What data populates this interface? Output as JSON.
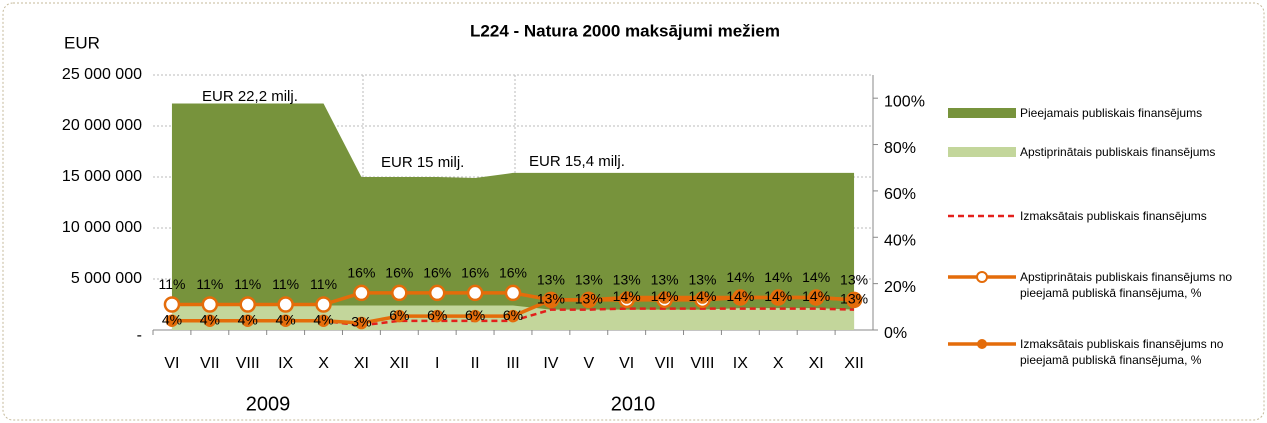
{
  "chart_data": {
    "type": "combo",
    "title": "L224 - Natura 2000 maksājumi mežiem",
    "y_axis_label": "EUR",
    "categories": [
      "VI",
      "VII",
      "VIII",
      "IX",
      "X",
      "XI",
      "XII",
      "I",
      "II",
      "III",
      "IV",
      "V",
      "VI",
      "VII",
      "VIII",
      "IX",
      "X",
      "XI",
      "XII"
    ],
    "groups": [
      "2009",
      "2010"
    ],
    "ylim": [
      0,
      25000000
    ],
    "yticks": [
      {
        "value": 0,
        "label": "-"
      },
      {
        "value": 5000000,
        "label": "5 000 000"
      },
      {
        "value": 10000000,
        "label": "10 000 000"
      },
      {
        "value": 15000000,
        "label": "15 000 000"
      },
      {
        "value": 20000000,
        "label": "20 000 000"
      },
      {
        "value": 25000000,
        "label": "25 000 000"
      }
    ],
    "y2lim": [
      0,
      110
    ],
    "y2ticks": [
      {
        "value": 0,
        "label": "0%"
      },
      {
        "value": 20,
        "label": "20%"
      },
      {
        "value": 40,
        "label": "40%"
      },
      {
        "value": 60,
        "label": "60%"
      },
      {
        "value": 80,
        "label": "80%"
      },
      {
        "value": 100,
        "label": "100%"
      }
    ],
    "grid": true,
    "annotations": [
      "EUR  22,2 milj.",
      "EUR 15 milj.",
      "EUR 15,4 milj."
    ],
    "series": [
      {
        "name": "Pieejamais publiskais finansējums",
        "type": "area",
        "color": "#77933c",
        "values": [
          22200000,
          22200000,
          22200000,
          22200000,
          22200000,
          15000000,
          15000000,
          15000000,
          14900000,
          15400000,
          15400000,
          15400000,
          15400000,
          15400000,
          15400000,
          15400000,
          15400000,
          15400000,
          15400000
        ]
      },
      {
        "name": "Apstiprinātais publiskais finansējums",
        "type": "area",
        "color": "#c3d69b",
        "values": [
          2400000,
          2400000,
          2400000,
          2400000,
          2400000,
          2400000,
          2400000,
          2400000,
          2400000,
          2400000,
          2000000,
          2000000,
          2000000,
          2000000,
          2000000,
          2150000,
          2150000,
          2150000,
          2000000
        ]
      },
      {
        "name": "Izmaksātais publiskais finansējums",
        "type": "dashed",
        "color": "#e3201b",
        "values": [
          890000,
          890000,
          890000,
          890000,
          890000,
          450000,
          900000,
          900000,
          900000,
          900000,
          2000000,
          2000000,
          2100000,
          2100000,
          2100000,
          2100000,
          2100000,
          2100000,
          2000000
        ]
      },
      {
        "name": "Apstiprinātais  publiskais finansējums no pieejamā publiskā finansējuma, %",
        "type": "line-open",
        "color": "#e46c0a",
        "axis": "y2",
        "values": [
          11,
          11,
          11,
          11,
          11,
          16,
          16,
          16,
          16,
          16,
          13,
          13,
          13,
          13,
          13,
          14,
          14,
          14,
          13
        ],
        "value_labels": [
          "11%",
          "11%",
          "11%",
          "11%",
          "11%",
          "16%",
          "16%",
          "16%",
          "16%",
          "16%",
          "13%",
          "13%",
          "13%",
          "13%",
          "13%",
          "14%",
          "14%",
          "14%",
          "13%"
        ]
      },
      {
        "name": "Izmaksātais  publiskais finansējums no pieejamā publiskā finansējuma, %",
        "type": "line-dot",
        "color": "#e46c0a",
        "axis": "y2",
        "values": [
          4,
          4,
          4,
          4,
          4,
          3,
          6,
          6,
          6,
          6,
          13,
          13,
          14,
          14,
          14,
          14,
          14,
          14,
          13
        ],
        "value_labels": [
          "4%",
          "4%",
          "4%",
          "4%",
          "4%",
          "3%",
          "6%",
          "6%",
          "6%",
          "6%",
          "13%",
          "13%",
          "14%",
          "14%",
          "14%",
          "14%",
          "14%",
          "14%",
          "13%"
        ]
      }
    ]
  }
}
